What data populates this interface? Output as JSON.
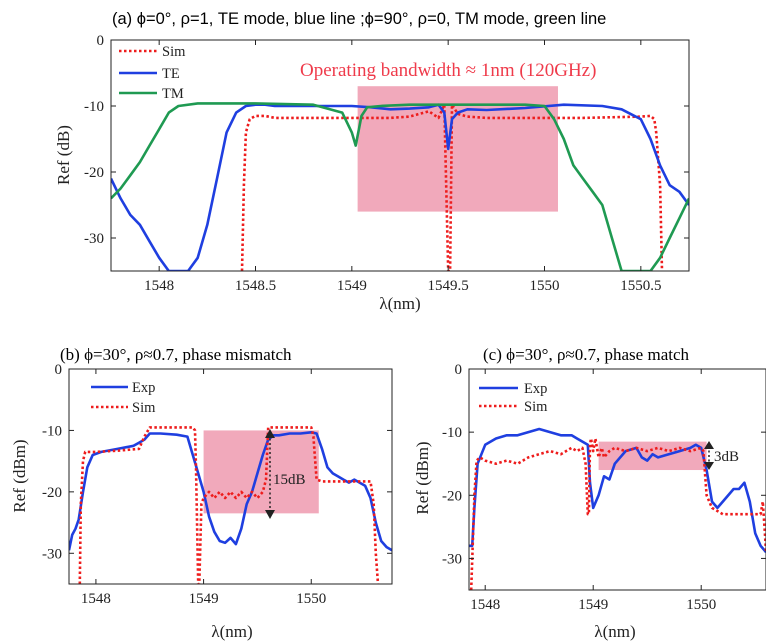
{
  "chart_data": [
    {
      "id": "a",
      "type": "line",
      "title": "(a) ϕ=0°, ρ=1, TE mode, blue line ;ϕ=90°, ρ=0, TM mode, green line",
      "xlabel": "λ(nm)",
      "ylabel": "Ref (dB)",
      "xlim": [
        1547.75,
        1550.75
      ],
      "ylim": [
        -35,
        0
      ],
      "xticks": [
        1548,
        1548.5,
        1549,
        1549.5,
        1550,
        1550.5
      ],
      "xtick_labels": [
        "1548",
        "1548.5",
        "1549",
        "1549.5",
        "1550",
        "1550.5"
      ],
      "yticks": [
        0,
        -10,
        -20,
        -30
      ],
      "ytick_labels": [
        "0",
        "-10",
        "-20",
        "-30"
      ],
      "legend": [
        "Sim",
        "TE",
        "TM"
      ],
      "legend_position": "top-left",
      "annotation": "Operating bandwidth ≈ 1nm (120GHz)",
      "shaded_region": {
        "x": [
          1549.03,
          1550.07
        ],
        "y": [
          -26,
          -7
        ],
        "color": "#f0a0b4"
      },
      "series": [
        {
          "name": "Sim",
          "color": "#ee1c1c",
          "dash": "dotted",
          "x": [
            1548.43,
            1548.44,
            1548.45,
            1548.47,
            1548.5,
            1548.55,
            1548.6,
            1549.0,
            1549.2,
            1549.3,
            1549.35,
            1549.4,
            1549.45,
            1549.48,
            1549.5,
            1549.51,
            1549.52,
            1549.55,
            1549.6,
            1549.7,
            1549.9,
            1550.2,
            1550.5,
            1550.55,
            1550.57,
            1550.58,
            1550.6,
            1550.61
          ],
          "y": [
            -35,
            -22,
            -14,
            -12,
            -11.5,
            -11.5,
            -11.8,
            -11.8,
            -11.8,
            -11.6,
            -11.2,
            -10.8,
            -11.8,
            -9.8,
            -35,
            -35,
            -9.8,
            -11.2,
            -11.6,
            -11.8,
            -11.8,
            -11.8,
            -11.6,
            -11.5,
            -12,
            -14,
            -22,
            -35
          ]
        },
        {
          "name": "TE",
          "color": "#1f3fe0",
          "dash": "solid",
          "x": [
            1547.75,
            1547.8,
            1547.85,
            1547.9,
            1547.95,
            1548.0,
            1548.05,
            1548.1,
            1548.15,
            1548.2,
            1548.25,
            1548.3,
            1548.35,
            1548.4,
            1548.45,
            1548.5,
            1548.55,
            1548.6,
            1548.8,
            1549.0,
            1549.1,
            1549.2,
            1549.3,
            1549.4,
            1549.45,
            1549.48,
            1549.5,
            1549.52,
            1549.55,
            1549.6,
            1549.7,
            1549.9,
            1550.1,
            1550.3,
            1550.4,
            1550.5,
            1550.55,
            1550.6,
            1550.65,
            1550.7,
            1550.75
          ],
          "y": [
            -21,
            -24,
            -26.5,
            -28,
            -30.5,
            -33,
            -35,
            -35,
            -35,
            -33,
            -28,
            -21,
            -14,
            -11,
            -10,
            -9.8,
            -9.8,
            -10,
            -10,
            -10,
            -10.2,
            -10.5,
            -10.4,
            -10.2,
            -9.8,
            -11,
            -16.5,
            -12,
            -11,
            -10.5,
            -10.6,
            -10.3,
            -9.8,
            -10,
            -10.5,
            -12,
            -15,
            -19,
            -22,
            -23,
            -25
          ]
        },
        {
          "name": "TM",
          "color": "#1f9a52",
          "dash": "solid",
          "x": [
            1547.75,
            1547.8,
            1547.85,
            1547.9,
            1547.95,
            1548.0,
            1548.05,
            1548.1,
            1548.2,
            1548.3,
            1548.5,
            1548.8,
            1548.95,
            1549.0,
            1549.02,
            1549.05,
            1549.08,
            1549.15,
            1549.3,
            1549.5,
            1549.7,
            1549.9,
            1550.0,
            1550.05,
            1550.1,
            1550.15,
            1550.2,
            1550.25,
            1550.3,
            1550.35,
            1550.4,
            1550.45,
            1550.5,
            1550.55,
            1550.6,
            1550.65,
            1550.7,
            1550.75
          ],
          "y": [
            -24,
            -22.5,
            -20.5,
            -18.5,
            -16,
            -13.5,
            -11,
            -10,
            -9.6,
            -9.6,
            -9.6,
            -9.8,
            -11,
            -14,
            -16,
            -11.5,
            -10.2,
            -10,
            -9.8,
            -9.8,
            -9.8,
            -9.8,
            -10,
            -12,
            -15,
            -19,
            -21,
            -23,
            -25,
            -30,
            -35,
            -35,
            -35,
            -35,
            -33,
            -30,
            -27,
            -24
          ]
        }
      ]
    },
    {
      "id": "b",
      "type": "line",
      "title": "(b) ϕ=30°, ρ≈0.7, phase mismatch",
      "xlabel": "λ(nm)",
      "ylabel": "Ref (dBm)",
      "xlim": [
        1547.75,
        1550.75
      ],
      "ylim": [
        -35,
        0
      ],
      "xticks": [
        1548,
        1549,
        1550
      ],
      "xtick_labels": [
        "1548",
        "1549",
        "1550"
      ],
      "yticks": [
        0,
        -10,
        -20,
        -30
      ],
      "ytick_labels": [
        "0",
        "-10",
        "-20",
        "-30"
      ],
      "legend": [
        "Exp",
        "Sim"
      ],
      "legend_position": "top-left",
      "annotation": "15dB",
      "shaded_region": {
        "x": [
          1549.0,
          1550.07
        ],
        "y": [
          -23.5,
          -10
        ],
        "color": "#f0a0b4"
      },
      "series": [
        {
          "name": "Exp",
          "color": "#1f3fe0",
          "dash": "solid",
          "x": [
            1547.75,
            1547.78,
            1547.81,
            1547.84,
            1547.88,
            1547.92,
            1547.97,
            1548.05,
            1548.2,
            1548.35,
            1548.4,
            1548.45,
            1548.5,
            1548.6,
            1548.75,
            1548.85,
            1548.9,
            1548.95,
            1549.0,
            1549.05,
            1549.1,
            1549.15,
            1549.2,
            1549.25,
            1549.3,
            1549.35,
            1549.4,
            1549.45,
            1549.5,
            1549.55,
            1549.6,
            1549.65,
            1549.7,
            1549.8,
            1549.9,
            1550.0,
            1550.05,
            1550.1,
            1550.15,
            1550.2,
            1550.25,
            1550.3,
            1550.35,
            1550.4,
            1550.5,
            1550.55,
            1550.6,
            1550.65,
            1550.7,
            1550.75
          ],
          "y": [
            -29.5,
            -27,
            -26,
            -24.5,
            -20,
            -16,
            -14,
            -13.5,
            -13,
            -12.5,
            -12,
            -11.5,
            -10.5,
            -10.5,
            -10.7,
            -11,
            -14,
            -17,
            -20,
            -24,
            -26.5,
            -28,
            -28.3,
            -27.5,
            -28.5,
            -26,
            -22,
            -20,
            -17,
            -14,
            -11.5,
            -10.8,
            -10.8,
            -10.5,
            -10.5,
            -10.3,
            -10.5,
            -13,
            -16,
            -17,
            -17.5,
            -18,
            -18.5,
            -18,
            -19,
            -21,
            -25,
            -28,
            -29,
            -29.5
          ]
        },
        {
          "name": "Sim",
          "color": "#ee1c1c",
          "dash": "dotted",
          "x": [
            1547.85,
            1547.86,
            1547.88,
            1547.9,
            1548.0,
            1548.2,
            1548.4,
            1548.45,
            1548.5,
            1548.55,
            1548.6,
            1548.75,
            1548.85,
            1548.9,
            1548.92,
            1548.93,
            1548.95,
            1548.96,
            1548.98,
            1549.0,
            1549.05,
            1549.1,
            1549.15,
            1549.2,
            1549.25,
            1549.3,
            1549.35,
            1549.4,
            1549.45,
            1549.5,
            1549.55,
            1549.58,
            1549.6,
            1549.62,
            1549.7,
            1549.8,
            1549.9,
            1550.0,
            1550.02,
            1550.05,
            1550.1,
            1550.2,
            1550.3,
            1550.4,
            1550.5,
            1550.55,
            1550.58,
            1550.6,
            1550.62
          ],
          "y": [
            -35,
            -22,
            -15,
            -13.5,
            -13.5,
            -13.3,
            -13,
            -11,
            -9.5,
            -9.5,
            -9.5,
            -9.5,
            -9.5,
            -9.5,
            -10,
            -16,
            -35,
            -35,
            -22,
            -21,
            -20,
            -21,
            -20,
            -21,
            -20,
            -21,
            -20,
            -21,
            -20,
            -21,
            -20,
            -18,
            -9.5,
            -9.5,
            -9.5,
            -9.5,
            -9.5,
            -9.5,
            -11,
            -18,
            -18.3,
            -18.3,
            -18.3,
            -18.3,
            -18.3,
            -18.3,
            -22,
            -30,
            -35
          ]
        }
      ]
    },
    {
      "id": "c",
      "type": "line",
      "title": "(c) ϕ=30°, ρ≈0.7, phase match",
      "xlabel": "λ(nm)",
      "ylabel": "Ref (dBm)",
      "xlim": [
        1547.85,
        1550.6
      ],
      "ylim": [
        -35,
        0
      ],
      "xticks": [
        1548,
        1549,
        1550
      ],
      "xtick_labels": [
        "1548",
        "1549",
        "1550"
      ],
      "yticks": [
        0,
        -10,
        -20,
        -30
      ],
      "ytick_labels": [
        "0",
        "-10",
        "-20",
        "-30"
      ],
      "legend": [
        "Exp",
        "Sim"
      ],
      "legend_position": "top-left",
      "annotation": "3dB",
      "shaded_region": {
        "x": [
          1549.05,
          1550.05
        ],
        "y": [
          -16,
          -11.5
        ],
        "color": "#f0a0b4"
      },
      "series": [
        {
          "name": "Exp",
          "color": "#1f3fe0",
          "dash": "solid",
          "x": [
            1547.85,
            1547.88,
            1547.9,
            1547.93,
            1548.0,
            1548.1,
            1548.2,
            1548.3,
            1548.4,
            1548.5,
            1548.6,
            1548.7,
            1548.8,
            1548.85,
            1548.9,
            1548.95,
            1548.97,
            1549.0,
            1549.05,
            1549.1,
            1549.15,
            1549.2,
            1549.3,
            1549.4,
            1549.45,
            1549.5,
            1549.55,
            1549.6,
            1549.7,
            1549.8,
            1549.9,
            1549.95,
            1550.0,
            1550.05,
            1550.1,
            1550.15,
            1550.2,
            1550.3,
            1550.35,
            1550.4,
            1550.45,
            1550.5,
            1550.55,
            1550.6
          ],
          "y": [
            -28,
            -28,
            -22,
            -15,
            -12,
            -11,
            -10.5,
            -10.5,
            -10,
            -9.5,
            -10,
            -10.5,
            -10.5,
            -11,
            -11.5,
            -12,
            -18,
            -22,
            -20,
            -17,
            -17.5,
            -15,
            -13,
            -12.5,
            -14,
            -14.5,
            -13.5,
            -14,
            -13.5,
            -13,
            -12.5,
            -12,
            -12.5,
            -16,
            -21,
            -22,
            -21,
            -19,
            -19,
            -18,
            -21,
            -26,
            -28,
            -29
          ]
        },
        {
          "name": "Sim",
          "color": "#ee1c1c",
          "dash": "dotted",
          "x": [
            1547.87,
            1547.9,
            1547.92,
            1547.95,
            1548.0,
            1548.1,
            1548.2,
            1548.3,
            1548.4,
            1548.5,
            1548.6,
            1548.7,
            1548.8,
            1548.85,
            1548.9,
            1548.93,
            1548.95,
            1548.96,
            1548.97,
            1548.98,
            1549.0,
            1549.02,
            1549.05,
            1549.08,
            1549.1,
            1549.15,
            1549.2,
            1549.3,
            1549.4,
            1549.5,
            1549.6,
            1549.7,
            1549.8,
            1549.9,
            1550.0,
            1550.02,
            1550.05,
            1550.1,
            1550.2,
            1550.3,
            1550.4,
            1550.5,
            1550.55,
            1550.57,
            1550.59,
            1550.6
          ],
          "y": [
            -35,
            -20,
            -14.5,
            -14,
            -14.5,
            -15,
            -14.5,
            -15,
            -14,
            -13.5,
            -13,
            -13.5,
            -12.5,
            -13,
            -12.5,
            -15,
            -23,
            -23,
            -12,
            -11,
            -13,
            -11,
            -14,
            -12.5,
            -14,
            -13,
            -12.5,
            -13,
            -12.5,
            -13,
            -12.5,
            -13,
            -12.5,
            -13,
            -12.5,
            -13,
            -20,
            -22,
            -23,
            -23,
            -23,
            -23,
            -23,
            -21,
            -26,
            -29
          ]
        }
      ]
    }
  ]
}
